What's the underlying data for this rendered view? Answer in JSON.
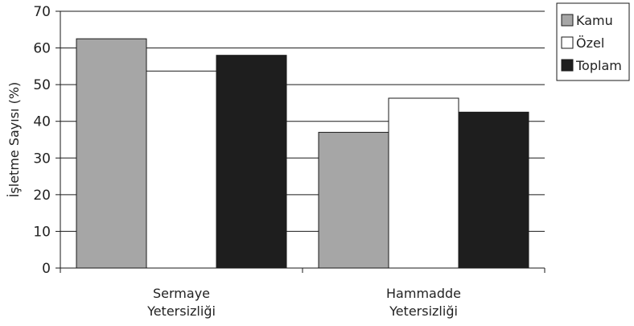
{
  "chart_data": {
    "type": "bar",
    "title": "",
    "xlabel": "",
    "ylabel": "İşletme Sayısı (%)",
    "ylim": [
      0,
      70
    ],
    "yticks": [
      0,
      10,
      20,
      30,
      40,
      50,
      60,
      70
    ],
    "grid": true,
    "legend_position": "top-right",
    "categories": [
      [
        "Sermaye",
        "Yetersizliği"
      ],
      [
        "Hammadde",
        "Yetersizliği"
      ]
    ],
    "series": [
      {
        "name": "Kamu",
        "color": "#a6a6a6",
        "values": [
          62.5,
          37.0
        ]
      },
      {
        "name": "Özel",
        "color": "#ffffff",
        "values": [
          53.7,
          46.3
        ]
      },
      {
        "name": "Toplam",
        "color": "#1e1e1e",
        "values": [
          58.0,
          42.5
        ]
      }
    ]
  }
}
